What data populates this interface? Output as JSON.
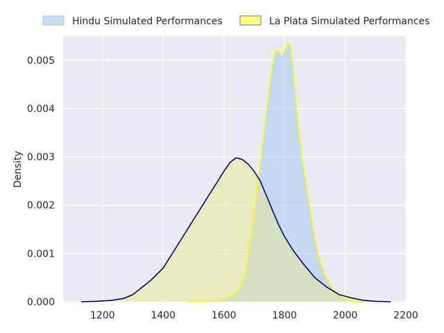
{
  "chart_data": {
    "type": "area",
    "title": "",
    "xlabel": "",
    "ylabel": "Density",
    "xlim": [
      1070,
      2200
    ],
    "ylim": [
      0,
      0.0055
    ],
    "xticks": [
      1200,
      1400,
      1600,
      1800,
      2000,
      2200
    ],
    "xtick_labels": [
      "1200",
      "1400",
      "1600",
      "1800",
      "2000",
      "2200"
    ],
    "yticks": [
      0,
      0.001,
      0.002,
      0.003,
      0.004,
      0.005
    ],
    "ytick_labels": [
      "0.000",
      "0.001",
      "0.002",
      "0.003",
      "0.004",
      "0.005"
    ],
    "grid": true,
    "legend_placement": "top",
    "legend": [
      "Hindu Simulated Performances",
      "La Plata Simulated Performances"
    ],
    "series": [
      {
        "name": "Hindu Simulated Performances",
        "fill_color": "#a6c8f0",
        "line_color": "#ffff00",
        "legend_fill": "#c6dcf5",
        "legend_edge": "#b8c98a",
        "x": [
          1480,
          1530,
          1560,
          1590,
          1620,
          1650,
          1670,
          1690,
          1710,
          1730,
          1745,
          1760,
          1770,
          1780,
          1790,
          1800,
          1810,
          1820,
          1830,
          1840,
          1850,
          1860,
          1875,
          1890,
          1910,
          1930,
          1950,
          1970,
          1990,
          2010,
          2030,
          2060
        ],
        "y": [
          0.0,
          1e-05,
          2e-05,
          5e-05,
          0.0001,
          0.00025,
          0.0006,
          0.0014,
          0.0024,
          0.0034,
          0.0042,
          0.0049,
          0.0052,
          0.00518,
          0.0051,
          0.0052,
          0.00535,
          0.0053,
          0.0048,
          0.004,
          0.0034,
          0.0029,
          0.0023,
          0.0017,
          0.001,
          0.0006,
          0.00035,
          0.0002,
          8e-05,
          3e-05,
          1e-05,
          0.0
        ]
      },
      {
        "name": "La Plata Simulated Performances",
        "fill_color": "#e7e79a",
        "line_color": "#000070",
        "legend_fill": "#ffff80",
        "legend_edge": "#707070",
        "x": [
          1130,
          1180,
          1230,
          1270,
          1300,
          1330,
          1360,
          1400,
          1430,
          1460,
          1490,
          1520,
          1550,
          1580,
          1600,
          1620,
          1640,
          1660,
          1680,
          1700,
          1720,
          1740,
          1760,
          1780,
          1800,
          1830,
          1860,
          1900,
          1940,
          1980,
          2020,
          2060,
          2100,
          2150
        ],
        "y": [
          0.0,
          1e-05,
          3e-05,
          7e-05,
          0.00015,
          0.0003,
          0.00045,
          0.0007,
          0.001,
          0.0013,
          0.0016,
          0.0019,
          0.0022,
          0.0025,
          0.0027,
          0.00288,
          0.00298,
          0.00295,
          0.00285,
          0.0027,
          0.0025,
          0.0022,
          0.0019,
          0.0016,
          0.00135,
          0.00105,
          0.0008,
          0.0005,
          0.0003,
          0.00015,
          8e-05,
          3e-05,
          1e-05,
          0.0
        ]
      }
    ]
  }
}
